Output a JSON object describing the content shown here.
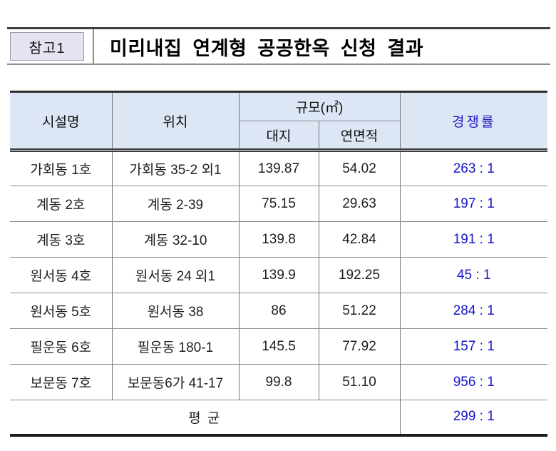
{
  "header": {
    "badge_label": "참고1",
    "title": "미리내집 연계형 공공한옥 신청 결과"
  },
  "table": {
    "columns": {
      "facility": "시설명",
      "location": "위치",
      "scale": "규모(㎡)",
      "land": "대지",
      "floor_area": "연면적",
      "ratio": "경쟁률"
    },
    "rows": [
      {
        "name": "가회동 1호",
        "location": "가회동 35-2 외1",
        "land": "139.87",
        "floor": "54.02",
        "ratio": "263 : 1"
      },
      {
        "name": "계동 2호",
        "location": "계동 2-39",
        "land": "75.15",
        "floor": "29.63",
        "ratio": "197 : 1"
      },
      {
        "name": "계동 3호",
        "location": "계동 32-10",
        "land": "139.8",
        "floor": "42.84",
        "ratio": "191 : 1"
      },
      {
        "name": "원서동 4호",
        "location": "원서동 24 외1",
        "land": "139.9",
        "floor": "192.25",
        "ratio": "45 : 1"
      },
      {
        "name": "원서동 5호",
        "location": "원서동 38",
        "land": "86",
        "floor": "51.22",
        "ratio": "284 : 1"
      },
      {
        "name": "필운동 6호",
        "location": "필운동 180-1",
        "land": "145.5",
        "floor": "77.92",
        "ratio": "157 : 1"
      },
      {
        "name": "보문동 7호",
        "location": "보문동6가 41-17",
        "land": "99.8",
        "floor": "51.10",
        "ratio": "956 : 1"
      }
    ],
    "footer": {
      "label": "평 균",
      "ratio": "299 : 1"
    }
  },
  "colors": {
    "header_cell_bg": "#dce6f4",
    "badge_bg": "#e3e3f1",
    "ratio_blue": "#1717c8"
  }
}
